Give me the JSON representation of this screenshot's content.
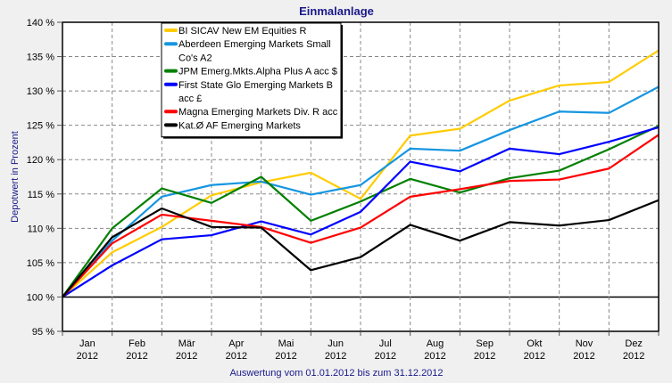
{
  "chart_data": {
    "type": "line",
    "title": "Einmalanlage",
    "xlabel": "Auswertung vom 01.01.2012 bis zum 31.12.2012",
    "ylabel": "Depotwert in Prozent",
    "ylim": [
      95,
      140
    ],
    "yticks": [
      95,
      100,
      105,
      110,
      115,
      120,
      125,
      130,
      135,
      140
    ],
    "ytick_suffix": " %",
    "grid": true,
    "legend_position": "top-left",
    "categories": [
      [
        "Jan",
        "2012"
      ],
      [
        "Feb",
        "2012"
      ],
      [
        "Mär",
        "2012"
      ],
      [
        "Apr",
        "2012"
      ],
      [
        "Mai",
        "2012"
      ],
      [
        "Jun",
        "2012"
      ],
      [
        "Jul",
        "2012"
      ],
      [
        "Aug",
        "2012"
      ],
      [
        "Sep",
        "2012"
      ],
      [
        "Okt",
        "2012"
      ],
      [
        "Nov",
        "2012"
      ],
      [
        "Dez",
        "2012"
      ]
    ],
    "x_points": [
      "01.01.2012",
      "01.02.2012",
      "01.03.2012",
      "01.04.2012",
      "01.05.2012",
      "01.06.2012",
      "01.07.2012",
      "01.08.2012",
      "01.09.2012",
      "01.10.2012",
      "01.11.2012",
      "01.12.2012",
      "31.12.2012"
    ],
    "series": [
      {
        "name": [
          "BI SICAV New EM Equities R"
        ],
        "color": "#ffcc00",
        "values": [
          100,
          106.5,
          110.2,
          114.8,
          116.7,
          118.1,
          114.3,
          123.5,
          124.5,
          128.6,
          130.8,
          131.3,
          135.9
        ]
      },
      {
        "name": [
          "Aberdeen Emerging Markets Small",
          "Co's A2"
        ],
        "color": "#1596e0",
        "values": [
          100,
          108.2,
          114.6,
          116.3,
          116.8,
          114.9,
          116.3,
          121.6,
          121.3,
          124.3,
          127.0,
          126.8,
          130.6
        ]
      },
      {
        "name": [
          "JPM Emerg.Mkts.Alpha Plus A acc $"
        ],
        "color": "#008000",
        "values": [
          100,
          110.0,
          115.8,
          113.7,
          117.5,
          111.1,
          113.9,
          117.2,
          115.2,
          117.3,
          118.4,
          121.5,
          124.9
        ]
      },
      {
        "name": [
          "First State Glo Emerging Markets B",
          "acc £"
        ],
        "color": "#0000ff",
        "values": [
          100,
          104.6,
          108.4,
          109.0,
          111.0,
          109.1,
          112.4,
          119.7,
          118.3,
          121.6,
          120.8,
          122.6,
          124.7
        ]
      },
      {
        "name": [
          "Magna Emerging Markets Div. R acc"
        ],
        "color": "#ff0000",
        "values": [
          100,
          107.8,
          112.0,
          111.1,
          110.2,
          107.9,
          110.1,
          114.6,
          115.7,
          116.9,
          117.1,
          118.7,
          123.6
        ]
      },
      {
        "name": [
          "Kat.Ø AF Emerging Markets"
        ],
        "color": "#000000",
        "values": [
          100,
          108.7,
          112.9,
          110.2,
          110.1,
          103.9,
          105.8,
          110.5,
          108.2,
          110.9,
          110.4,
          111.2,
          114.1
        ]
      }
    ]
  }
}
